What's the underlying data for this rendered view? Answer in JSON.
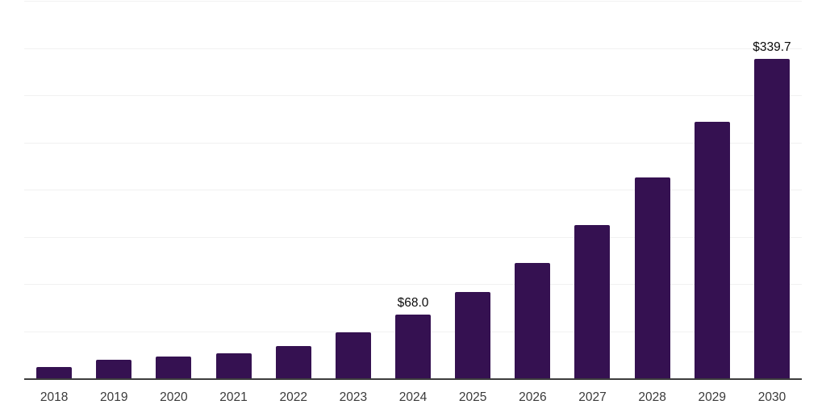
{
  "chart_data": {
    "type": "bar",
    "title": "",
    "xlabel": "",
    "ylabel": "",
    "categories": [
      "2018",
      "2019",
      "2020",
      "2021",
      "2022",
      "2023",
      "2024",
      "2025",
      "2026",
      "2027",
      "2028",
      "2029",
      "2030"
    ],
    "values": [
      12.8,
      20.5,
      24.0,
      27.1,
      34.8,
      49.3,
      68.0,
      92.3,
      123.4,
      163.2,
      214.0,
      273.0,
      339.7
    ],
    "data_labels": [
      "",
      "",
      "",
      "",
      "",
      "",
      "$68.0",
      "",
      "",
      "",
      "",
      "",
      "$339.7"
    ],
    "ylim": [
      0,
      400
    ],
    "grid_step": 50,
    "grid": "horizontal",
    "y_axis_labels_visible": false,
    "legend": "none"
  },
  "style": {
    "bar_color": "#351151",
    "grid_color": "#F1F1F1",
    "axis_color": "#3D3D3D",
    "tick_label_color": "#3A3A3A",
    "data_label_color": "#0A0A0A",
    "background": "#FFFFFF"
  }
}
